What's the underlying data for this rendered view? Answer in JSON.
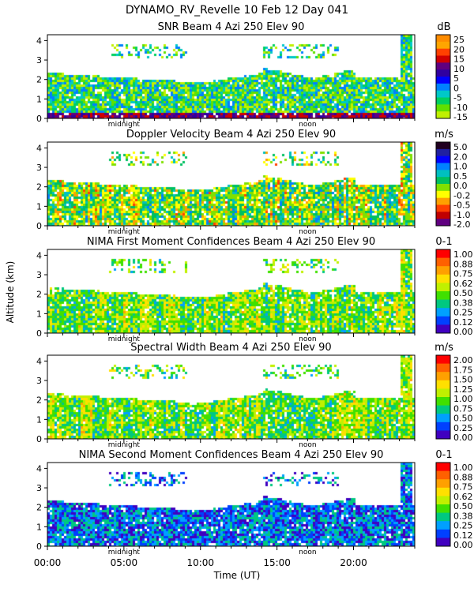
{
  "figure_title": "DYNAMO_RV_Revelle  10 Feb 12 Day 041",
  "y_axis_label": "Altitude (km)",
  "x_axis_label": "Time (UT)",
  "x_tick_labels": [
    "00:00",
    "05:00",
    "10:00",
    "15:00",
    "20:00"
  ],
  "marker_midnight": "midnight",
  "marker_noon": "noon",
  "chart_data": [
    {
      "type": "heatmap",
      "title": "SNR Beam 4 Azi 250 Elev 90",
      "unit": "dB",
      "colorbar_labels": [
        "25",
        "20",
        "15",
        "10",
        "5",
        "0",
        "-5",
        "-10",
        "-15"
      ],
      "colorbar_colors": [
        "#ff8c00",
        "#ffa500",
        "#ff4000",
        "#d00000",
        "#600080",
        "#3000a0",
        "#0000ff",
        "#0080ff",
        "#00c8c8",
        "#00d060",
        "#60e000",
        "#c0f000"
      ],
      "x_range_hours": [
        0,
        24
      ],
      "y_range_km": [
        0,
        4.3
      ],
      "y_ticks": [
        0,
        1,
        2,
        3,
        4
      ]
    },
    {
      "type": "heatmap",
      "title": "Doppler Velocity Beam 4 Azi 250 Elev 90",
      "unit": "m/s",
      "colorbar_labels": [
        "5.0",
        "2.0",
        "1.0",
        "0.5",
        "0.0",
        "-0.2",
        "-0.5",
        "-1.0",
        "-2.0"
      ],
      "colorbar_colors": [
        "#200020",
        "#2020a0",
        "#0000ff",
        "#0080ff",
        "#00c0c0",
        "#00c060",
        "#80e000",
        "#ffff00",
        "#ffa000",
        "#ff4000",
        "#c00000",
        "#600080"
      ],
      "x_range_hours": [
        0,
        24
      ],
      "y_range_km": [
        0,
        4.3
      ],
      "y_ticks": [
        0,
        1,
        2,
        3,
        4
      ]
    },
    {
      "type": "heatmap",
      "title": "NIMA First Moment Confidences Beam 4 Azi 250 Elev 90",
      "unit": "0-1",
      "colorbar_labels": [
        "1.00",
        "0.88",
        "0.75",
        "0.62",
        "0.50",
        "0.38",
        "0.25",
        "0.12",
        "0.00"
      ],
      "colorbar_colors": [
        "#ff0000",
        "#ff6000",
        "#ffa000",
        "#ffe000",
        "#c0f000",
        "#40e000",
        "#00c880",
        "#00a0ff",
        "#0040ff",
        "#4000c0"
      ],
      "x_range_hours": [
        0,
        24
      ],
      "y_range_km": [
        0,
        4.3
      ],
      "y_ticks": [
        0,
        1,
        2,
        3,
        4
      ]
    },
    {
      "type": "heatmap",
      "title": "Spectral Width Beam 4 Azi 250 Elev 90",
      "unit": "m/s",
      "colorbar_labels": [
        "2.00",
        "1.75",
        "1.50",
        "1.25",
        "1.00",
        "0.75",
        "0.50",
        "0.25",
        "0.00"
      ],
      "colorbar_colors": [
        "#ff0000",
        "#ff6000",
        "#ffa000",
        "#ffe000",
        "#c0f000",
        "#40e000",
        "#00c880",
        "#00a0ff",
        "#0040ff",
        "#4000c0"
      ],
      "x_range_hours": [
        0,
        24
      ],
      "y_range_km": [
        0,
        4.3
      ],
      "y_ticks": [
        0,
        1,
        2,
        3,
        4
      ]
    },
    {
      "type": "heatmap",
      "title": "NIMA Second Moment Confidences Beam 4 Azi 250 Elev 90",
      "unit": "0-1",
      "colorbar_labels": [
        "1.00",
        "0.88",
        "0.75",
        "0.62",
        "0.50",
        "0.38",
        "0.25",
        "0.12",
        "0.00"
      ],
      "colorbar_colors": [
        "#ff0000",
        "#ff6000",
        "#ffa000",
        "#ffe000",
        "#c0f000",
        "#40e000",
        "#00c880",
        "#00a0ff",
        "#0040ff",
        "#4000c0"
      ],
      "x_range_hours": [
        0,
        24
      ],
      "y_range_km": [
        0,
        4.3
      ],
      "y_ticks": [
        0,
        1,
        2,
        3,
        4
      ]
    }
  ]
}
